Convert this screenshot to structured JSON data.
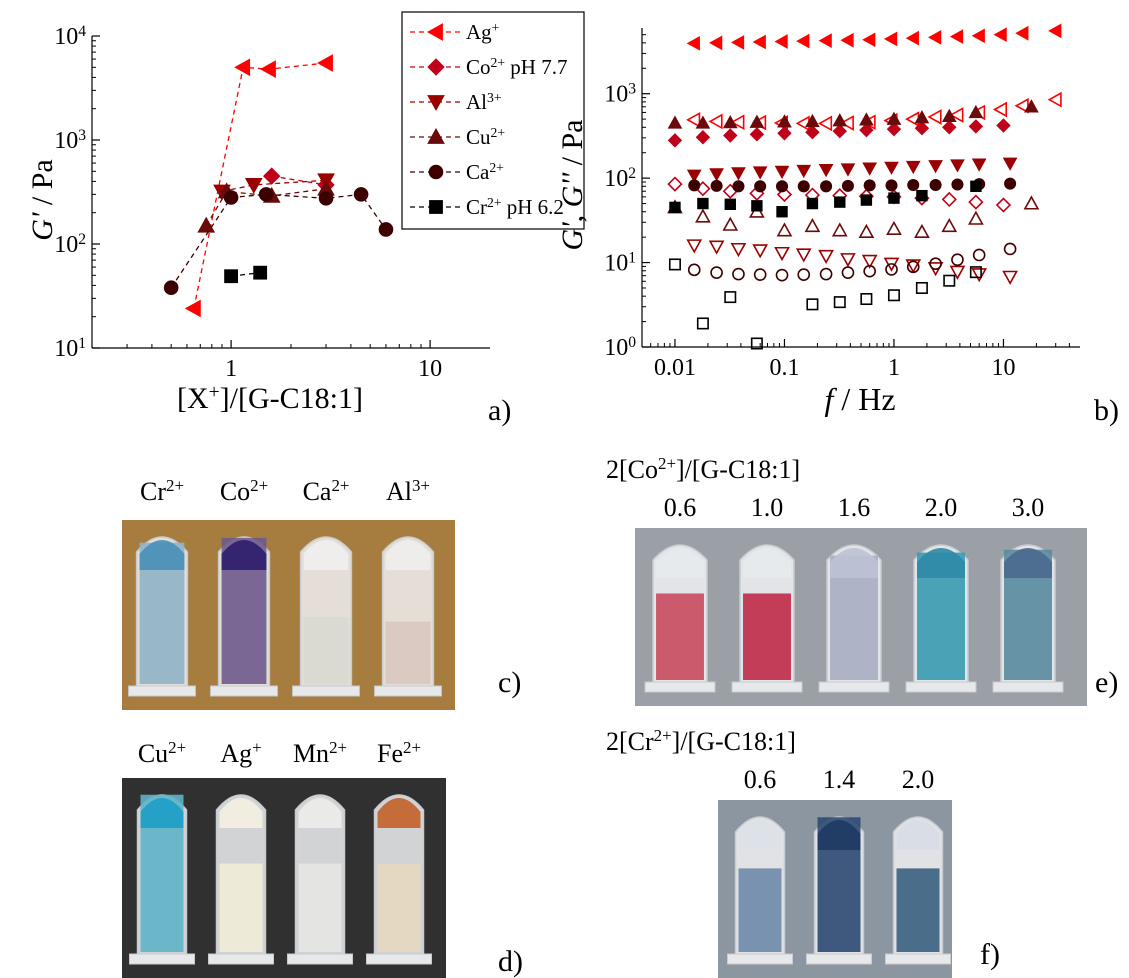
{
  "chart_data": [
    {
      "panel": "a)",
      "type": "line",
      "xscale": "log",
      "yscale": "log",
      "xlim": [
        0.2,
        20
      ],
      "ylim": [
        10,
        10000
      ],
      "xlabel": "[X+]/[G-C18:1]",
      "ylabel": "G' / Pa",
      "x_ticks": [
        "1",
        "10"
      ],
      "y_ticks": [
        "10^1",
        "10^2",
        "10^3",
        "10^4"
      ],
      "legend_position": "top-right",
      "series": [
        {
          "name": "Ag+",
          "marker": "triangle-left",
          "color": "#ff0000",
          "points": [
            [
              0.65,
              24
            ],
            [
              1.15,
              5000
            ],
            [
              1.55,
              4800
            ],
            [
              3.0,
              5500
            ]
          ]
        },
        {
          "name": "Co2+ pH 7.7",
          "marker": "diamond",
          "color": "#c0001a",
          "points": [
            [
              1.6,
              450
            ],
            [
              3.0,
              370
            ]
          ]
        },
        {
          "name": "Al3+",
          "marker": "triangle-down",
          "color": "#9b0000",
          "points": [
            [
              0.9,
              320
            ],
            [
              1.3,
              370
            ],
            [
              3.0,
              410
            ]
          ]
        },
        {
          "name": "Cu2+",
          "marker": "triangle-up",
          "color": "#6b0a0a",
          "points": [
            [
              0.75,
              150
            ],
            [
              0.95,
              320
            ],
            [
              1.6,
              290
            ],
            [
              3.0,
              340
            ]
          ]
        },
        {
          "name": "Ca2+",
          "marker": "circle",
          "color": "#3d0000",
          "points": [
            [
              0.5,
              38
            ],
            [
              1.0,
              280
            ],
            [
              1.5,
              300
            ],
            [
              3.0,
              275
            ],
            [
              4.5,
              300
            ],
            [
              6.0,
              138
            ]
          ]
        },
        {
          "name": "Cr2+ pH 6.2",
          "marker": "square",
          "color": "#000000",
          "points": [
            [
              1.0,
              49
            ],
            [
              1.4,
              53
            ]
          ]
        }
      ]
    },
    {
      "panel": "b)",
      "type": "scatter",
      "xscale": "log",
      "yscale": "log",
      "xlim": [
        0.005,
        50
      ],
      "ylim": [
        1,
        6000
      ],
      "xlabel": "f / Hz",
      "ylabel": "G', G'' / Pa",
      "x_ticks": [
        "0.01",
        "0.1",
        "1",
        "10"
      ],
      "y_ticks": [
        "10^0",
        "10^1",
        "10^2",
        "10^3"
      ],
      "series": [
        {
          "name": "Ag+ G'",
          "marker": "triangle-left",
          "filled": true,
          "color": "#ff0000",
          "x": [
            0.015,
            0.024,
            0.038,
            0.06,
            0.095,
            0.15,
            0.24,
            0.38,
            0.6,
            0.95,
            1.5,
            2.4,
            3.8,
            6.0,
            9.5,
            15,
            30
          ],
          "y": [
            3950,
            4000,
            4050,
            4100,
            4150,
            4200,
            4250,
            4300,
            4350,
            4450,
            4550,
            4650,
            4750,
            4850,
            5000,
            5200,
            5550
          ]
        },
        {
          "name": "Ag+ G''",
          "marker": "triangle-left",
          "filled": false,
          "color": "#ff0000",
          "x": [
            0.015,
            0.024,
            0.038,
            0.06,
            0.095,
            0.15,
            0.24,
            0.38,
            0.6,
            0.95,
            1.5,
            2.4,
            3.8,
            6.0,
            9.5,
            15,
            30
          ],
          "y": [
            490,
            470,
            460,
            455,
            450,
            445,
            445,
            450,
            460,
            480,
            500,
            530,
            560,
            600,
            650,
            720,
            850
          ]
        },
        {
          "name": "Co2+ G'",
          "marker": "diamond",
          "filled": true,
          "color": "#c0001a",
          "x": [
            0.01,
            0.018,
            0.032,
            0.056,
            0.1,
            0.18,
            0.32,
            0.56,
            1.0,
            1.8,
            3.2,
            5.6,
            10
          ],
          "y": [
            280,
            305,
            320,
            330,
            340,
            350,
            360,
            370,
            380,
            390,
            400,
            410,
            420
          ]
        },
        {
          "name": "Co2+ G''",
          "marker": "diamond",
          "filled": false,
          "color": "#c0001a",
          "x": [
            0.01,
            0.018,
            0.032,
            0.056,
            0.1,
            0.18,
            0.32,
            0.56,
            1.0,
            1.8,
            3.2,
            5.6,
            10
          ],
          "y": [
            85,
            75,
            70,
            66,
            64,
            63,
            62,
            61,
            60,
            58,
            56,
            52,
            48
          ]
        },
        {
          "name": "Al3+ G'",
          "marker": "triangle-down",
          "filled": true,
          "color": "#9b0000",
          "x": [
            0.015,
            0.024,
            0.038,
            0.06,
            0.095,
            0.15,
            0.24,
            0.38,
            0.6,
            0.95,
            1.5,
            2.4,
            3.8,
            6.0,
            11.5
          ],
          "y": [
            108,
            112,
            115,
            118,
            120,
            123,
            126,
            128,
            131,
            134,
            137,
            140,
            143,
            146,
            150
          ]
        },
        {
          "name": "Al3+ G''",
          "marker": "triangle-down",
          "filled": false,
          "color": "#9b0000",
          "x": [
            0.015,
            0.024,
            0.038,
            0.06,
            0.095,
            0.15,
            0.24,
            0.38,
            0.6,
            0.95,
            1.5,
            2.4,
            3.8,
            6.0,
            11.5
          ],
          "y": [
            16,
            15.5,
            14.5,
            14,
            13,
            12.5,
            12,
            11,
            10.5,
            9.7,
            9.3,
            8.6,
            7.8,
            7.3,
            6.8
          ]
        },
        {
          "name": "Cu2+ G'",
          "marker": "triangle-up",
          "filled": true,
          "color": "#6b0a0a",
          "x": [
            0.01,
            0.018,
            0.032,
            0.056,
            0.1,
            0.18,
            0.32,
            0.56,
            1.0,
            1.8,
            3.2,
            5.6,
            18
          ],
          "y": [
            450,
            450,
            455,
            460,
            465,
            470,
            480,
            490,
            500,
            520,
            540,
            600,
            700
          ]
        },
        {
          "name": "Cu2+ G''",
          "marker": "triangle-up",
          "filled": false,
          "color": "#6b0a0a",
          "x": [
            0.01,
            0.018,
            0.032,
            0.056,
            0.1,
            0.18,
            0.32,
            0.56,
            1.0,
            1.8,
            3.2,
            5.6,
            18
          ],
          "y": [
            45,
            35,
            28,
            40,
            24,
            27,
            24,
            23,
            25,
            23,
            27,
            33,
            50
          ]
        },
        {
          "name": "Ca2+ G'",
          "marker": "circle",
          "filled": true,
          "color": "#3d0000",
          "x": [
            0.015,
            0.024,
            0.038,
            0.06,
            0.095,
            0.15,
            0.24,
            0.38,
            0.6,
            0.95,
            1.5,
            2.4,
            3.8,
            6.0,
            11.5
          ],
          "y": [
            82,
            81,
            80,
            80,
            80,
            80,
            80,
            81,
            82,
            82,
            83,
            83,
            84,
            85,
            86
          ]
        },
        {
          "name": "Ca2+ G''",
          "marker": "circle",
          "filled": false,
          "color": "#3d0000",
          "x": [
            0.015,
            0.024,
            0.038,
            0.06,
            0.095,
            0.15,
            0.24,
            0.38,
            0.6,
            0.95,
            1.5,
            2.4,
            3.8,
            6.0,
            11.5
          ],
          "y": [
            8.2,
            7.6,
            7.3,
            7.2,
            7.1,
            7.2,
            7.3,
            7.6,
            7.9,
            8.3,
            8.9,
            9.7,
            10.8,
            12.3,
            14.5
          ]
        },
        {
          "name": "Cr2+ G'",
          "marker": "square",
          "filled": true,
          "color": "#000000",
          "x": [
            0.01,
            0.018,
            0.032,
            0.056,
            0.095,
            0.18,
            0.32,
            0.56,
            1.0,
            1.8,
            5.6
          ],
          "y": [
            45,
            50,
            49,
            47,
            40,
            50,
            52,
            55,
            58,
            62,
            80
          ]
        },
        {
          "name": "Cr2+ G''",
          "marker": "square",
          "filled": false,
          "color": "#000000",
          "x": [
            0.01,
            0.018,
            0.032,
            0.056,
            0.18,
            0.32,
            0.56,
            1.0,
            1.8,
            3.2,
            5.6
          ],
          "y": [
            9.5,
            1.9,
            3.9,
            1.1,
            3.2,
            3.4,
            3.7,
            4.1,
            5.0,
            6.1,
            7.7
          ]
        }
      ]
    }
  ],
  "photos": {
    "c": {
      "panel_label": "c)",
      "tube_labels": [
        "Cr2+",
        "Co2+",
        "Ca2+",
        "Al3+"
      ],
      "background": "#a67c3f",
      "tubes": [
        {
          "gel": "#8fb4c8",
          "top": "#4a8fb8",
          "fill_fraction": 0.92
        },
        {
          "gel": "#6e5a8c",
          "top": "#2d1e6e",
          "fill_fraction": 0.95
        },
        {
          "gel": "#d8d8d2",
          "top": "#f0f0ee",
          "fill_fraction": 0.45
        },
        {
          "gel": "#d8c8c0",
          "top": "#f0eeee",
          "fill_fraction": 0.42
        }
      ]
    },
    "d": {
      "panel_label": "d)",
      "tube_labels": [
        "Cu2+",
        "Ag+",
        "Mn2+",
        "Fe2+"
      ],
      "background": "#303030",
      "tubes": [
        {
          "gel": "#5fb4c8",
          "top": "#1e9ec8",
          "fill_fraction": 0.96
        },
        {
          "gel": "#f0ecd8",
          "top": "#f4f1e2",
          "fill_fraction": 0.55
        },
        {
          "gel": "#e6e6e4",
          "top": "#ececea",
          "fill_fraction": 0.55
        },
        {
          "gel": "#e6d8c0",
          "top": "#c2622a",
          "fill_fraction": 0.55
        }
      ]
    },
    "e": {
      "panel_label": "e)",
      "heading": "2[Co2+]/[G-C18:1]",
      "tube_labels": [
        "0.6",
        "1.0",
        "1.6",
        "2.0",
        "3.0"
      ],
      "background": "#9aa0a6",
      "tubes": [
        {
          "gel": "#c84a5e",
          "top": "#e8eaec",
          "fill_fraction": 0.62
        },
        {
          "gel": "#c02a48",
          "top": "#e8eaec",
          "fill_fraction": 0.62
        },
        {
          "gel": "#a8aec2",
          "top": "#bcc2d4",
          "fill_fraction": 0.88
        },
        {
          "gel": "#3a9ab0",
          "top": "#2d8aa6",
          "fill_fraction": 0.9
        },
        {
          "gel": "#5a8aa0",
          "top": "#4a6a8e",
          "fill_fraction": 0.92
        }
      ]
    },
    "f": {
      "panel_label": "f)",
      "heading": "2[Cr2+]/[G-C18:1]",
      "tube_labels": [
        "0.6",
        "1.4",
        "2.0"
      ],
      "background": "#8c96a0",
      "tubes": [
        {
          "gel": "#6e8aa8",
          "top": "#dde2e8",
          "fill_fraction": 0.6
        },
        {
          "gel": "#2d4a72",
          "top": "#1e3a64",
          "fill_fraction": 0.95
        },
        {
          "gel": "#3a6080",
          "top": "#d8dde4",
          "fill_fraction": 0.6
        }
      ]
    }
  }
}
